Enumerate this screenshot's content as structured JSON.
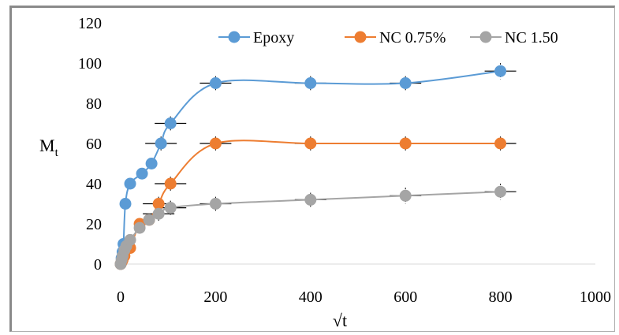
{
  "chart_data": {
    "type": "scatter",
    "title": "",
    "xlabel": "√t",
    "ylabel": "M",
    "ylabel_subscript": "t",
    "xlim": [
      0,
      1000
    ],
    "ylim": [
      0,
      120
    ],
    "x_ticks": [
      0,
      200,
      400,
      600,
      800,
      1000
    ],
    "y_ticks": [
      0,
      20,
      40,
      60,
      80,
      100,
      120
    ],
    "grid": false,
    "smooth_lines": true,
    "error_bars": true,
    "legend_position": "top",
    "series": [
      {
        "name": "Epoxy",
        "color": "#5b9bd5",
        "x": [
          0,
          2,
          4,
          6,
          10,
          20,
          45,
          65,
          85,
          105,
          200,
          400,
          600,
          800
        ],
        "y": [
          0,
          3,
          6,
          10,
          30,
          40,
          45,
          50,
          60,
          70,
          90,
          90,
          90,
          96
        ],
        "error": [
          0,
          0,
          0,
          0,
          0,
          0,
          0,
          0,
          0,
          0,
          0,
          0,
          0,
          4
        ]
      },
      {
        "name": "NC 0.75%",
        "color": "#ed7d31",
        "x": [
          0,
          2,
          4,
          8,
          20,
          40,
          60,
          80,
          105,
          200,
          400,
          600,
          800
        ],
        "y": [
          0,
          1,
          2,
          4,
          8,
          20,
          22,
          30,
          40,
          60,
          60,
          60,
          60
        ],
        "error": [
          0,
          0,
          0,
          0,
          0,
          0,
          0,
          0,
          0,
          0,
          0,
          0,
          0
        ]
      },
      {
        "name": "NC 1.50",
        "color": "#a5a5a5",
        "x": [
          0,
          2,
          4,
          8,
          12,
          20,
          40,
          60,
          80,
          105,
          200,
          400,
          600,
          800
        ],
        "y": [
          0,
          2,
          4,
          7,
          9,
          12,
          18,
          22,
          25,
          28,
          30,
          32,
          34,
          36
        ],
        "error": [
          0,
          0,
          0,
          0,
          0,
          0,
          0,
          0,
          0,
          0,
          0,
          0,
          4,
          4
        ]
      }
    ]
  }
}
